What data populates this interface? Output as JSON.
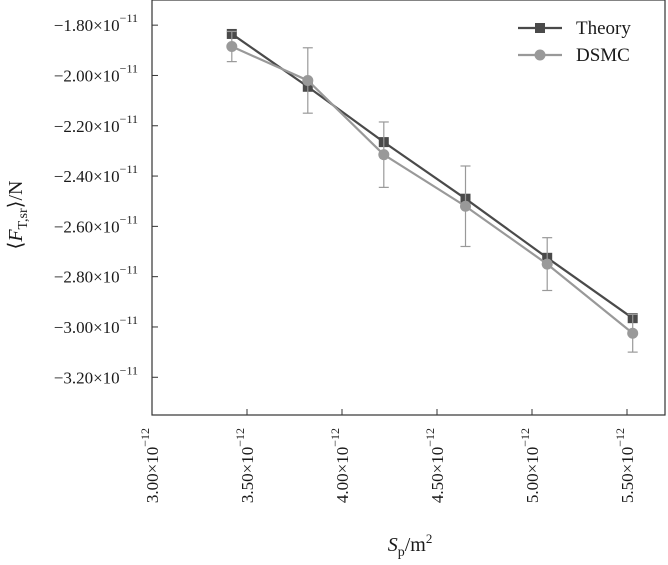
{
  "chart_data": {
    "type": "line",
    "title": "",
    "xlabel": {
      "main": "S",
      "sub": "p",
      "rest": "/m",
      "sup": "2"
    },
    "ylabel": {
      "open": "⟨",
      "main": "F",
      "sub": "T,sr",
      "close": "⟩/N"
    },
    "xlim": [
      3e-12,
      5.7e-12
    ],
    "ylim": [
      -3.35e-11,
      -1.7e-11
    ],
    "x_ticks": [
      {
        "value": 3e-12,
        "mant": "3.00×10",
        "exp": "−12"
      },
      {
        "value": 3.5e-12,
        "mant": "3.50×10",
        "exp": "−12"
      },
      {
        "value": 4e-12,
        "mant": "4.00×10",
        "exp": "−12"
      },
      {
        "value": 4.5e-12,
        "mant": "4.50×10",
        "exp": "−12"
      },
      {
        "value": 5e-12,
        "mant": "5.00×10",
        "exp": "−12"
      },
      {
        "value": 5.5e-12,
        "mant": "5.50×10",
        "exp": "−12"
      }
    ],
    "y_ticks": [
      {
        "value": -1.8e-11,
        "mant": "−1.80×10",
        "exp": "−11"
      },
      {
        "value": -2e-11,
        "mant": "−2.00×10",
        "exp": "−11"
      },
      {
        "value": -2.2e-11,
        "mant": "−2.20×10",
        "exp": "−11"
      },
      {
        "value": -2.4e-11,
        "mant": "−2.40×10",
        "exp": "−11"
      },
      {
        "value": -2.6e-11,
        "mant": "−2.60×10",
        "exp": "−11"
      },
      {
        "value": -2.8e-11,
        "mant": "−2.80×10",
        "exp": "−11"
      },
      {
        "value": -3e-11,
        "mant": "−3.00×10",
        "exp": "−11"
      },
      {
        "value": -3.2e-11,
        "mant": "−3.20×10",
        "exp": "−11"
      }
    ],
    "grid": false,
    "legend_position": "top-right",
    "series": [
      {
        "name": "Theory",
        "marker": "square",
        "color": "#4a4a4a",
        "x": [
          3.42e-12,
          3.82e-12,
          4.22e-12,
          4.65e-12,
          5.08e-12,
          5.53e-12
        ],
        "y": [
          -1.835e-11,
          -2.045e-11,
          -2.265e-11,
          -2.49e-11,
          -2.725e-11,
          -2.965e-11
        ]
      },
      {
        "name": "DSMC",
        "marker": "circle",
        "color": "#999999",
        "x": [
          3.42e-12,
          3.82e-12,
          4.22e-12,
          4.65e-12,
          5.08e-12,
          5.53e-12
        ],
        "y": [
          -1.885e-11,
          -2.02e-11,
          -2.315e-11,
          -2.52e-11,
          -2.75e-11,
          -3.025e-11
        ],
        "err": [
          6e-13,
          1.3e-12,
          1.3e-12,
          1.6e-12,
          1.05e-12,
          7.5e-13
        ]
      }
    ]
  }
}
